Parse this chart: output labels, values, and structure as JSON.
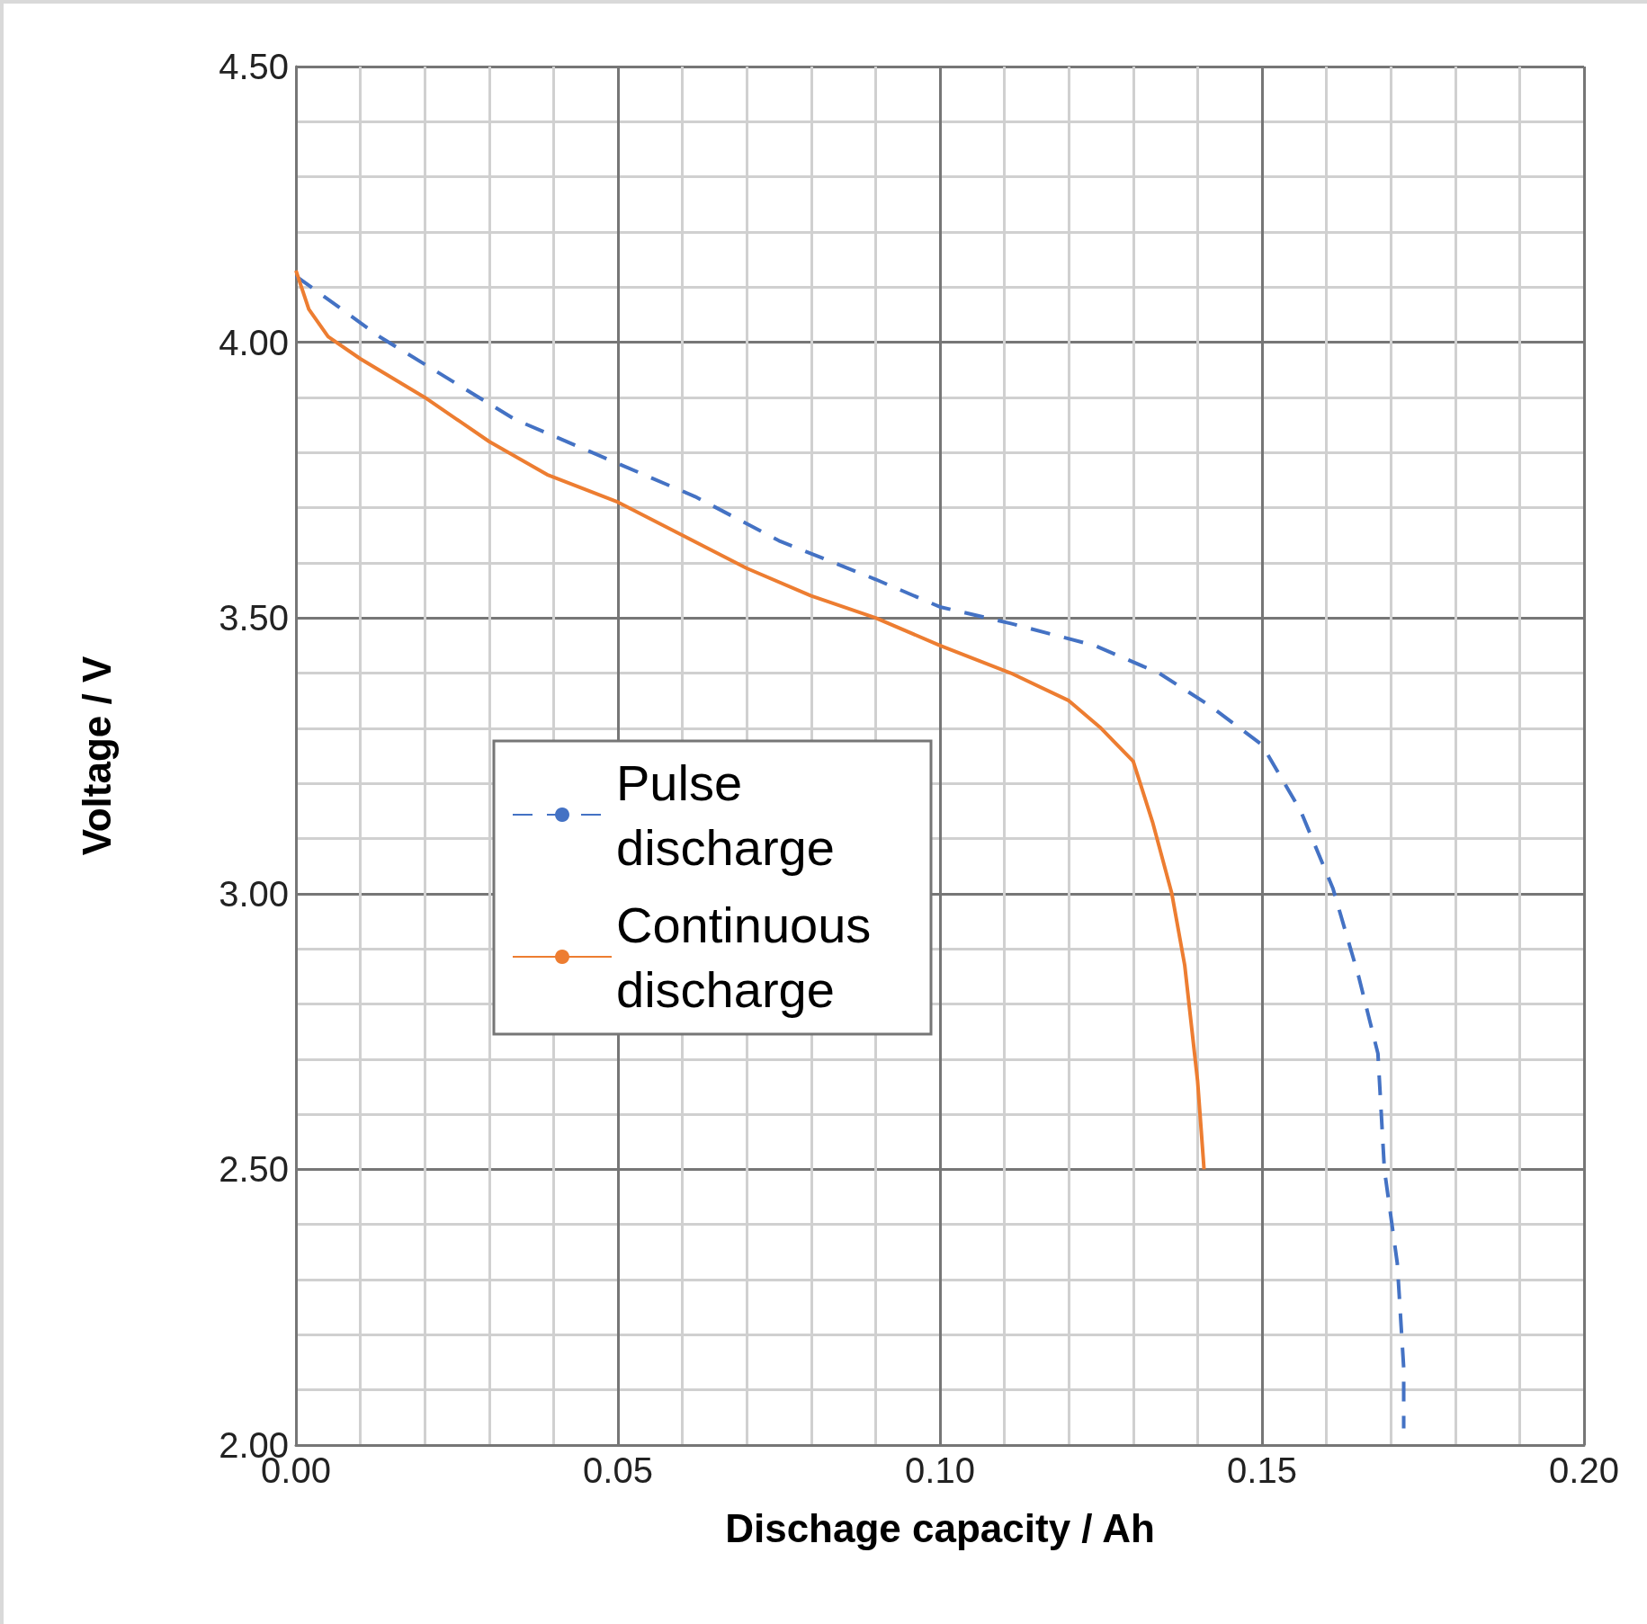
{
  "chart_data": {
    "type": "line",
    "xlabel": "Dischage capacity / Ah",
    "ylabel": "Voltage / V",
    "xlim": [
      0,
      0.2
    ],
    "ylim": [
      2,
      4.5
    ],
    "xticks": [
      {
        "value": 0,
        "label": "0.00"
      },
      {
        "value": 0.05,
        "label": "0.05"
      },
      {
        "value": 0.1,
        "label": "0.10"
      },
      {
        "value": 0.15,
        "label": "0.15"
      },
      {
        "value": 0.2,
        "label": "0.20"
      }
    ],
    "yticks": [
      {
        "value": 2,
        "label": "2.00"
      },
      {
        "value": 2.5,
        "label": "2.50"
      },
      {
        "value": 3,
        "label": "3.00"
      },
      {
        "value": 3.5,
        "label": "3.50"
      },
      {
        "value": 4,
        "label": "4.00"
      },
      {
        "value": 4.5,
        "label": "4.50"
      }
    ],
    "grid": true,
    "legend": "center",
    "marker": "none",
    "series": [
      {
        "name": "Pulse discharge",
        "color": "#4472c4",
        "line_style": "dashed",
        "x": [
          0,
          0.013,
          0.02,
          0.034,
          0.05,
          0.062,
          0.075,
          0.09,
          0.1,
          0.111,
          0.124,
          0.134,
          0.142,
          0.15,
          0.156,
          0.161,
          0.165,
          0.168,
          0.169,
          0.171,
          0.172,
          0.172
        ],
        "values": [
          4.12,
          4.01,
          3.96,
          3.86,
          3.78,
          3.72,
          3.64,
          3.57,
          3.52,
          3.49,
          3.45,
          3.4,
          3.34,
          3.27,
          3.15,
          3.01,
          2.85,
          2.71,
          2.5,
          2.33,
          2.14,
          2.03
        ]
      },
      {
        "name": "Continuous discharge",
        "color": "#ed7d31",
        "line_style": "solid",
        "x": [
          0,
          0.002,
          0.005,
          0.01,
          0.02,
          0.03,
          0.039,
          0.05,
          0.06,
          0.07,
          0.08,
          0.09,
          0.1,
          0.111,
          0.12,
          0.125,
          0.13,
          0.133,
          0.136,
          0.138,
          0.14,
          0.141
        ],
        "values": [
          4.13,
          4.06,
          4.01,
          3.97,
          3.9,
          3.82,
          3.76,
          3.71,
          3.65,
          3.59,
          3.54,
          3.5,
          3.45,
          3.4,
          3.35,
          3.3,
          3.24,
          3.13,
          3.0,
          2.87,
          2.66,
          2.5
        ]
      }
    ]
  }
}
